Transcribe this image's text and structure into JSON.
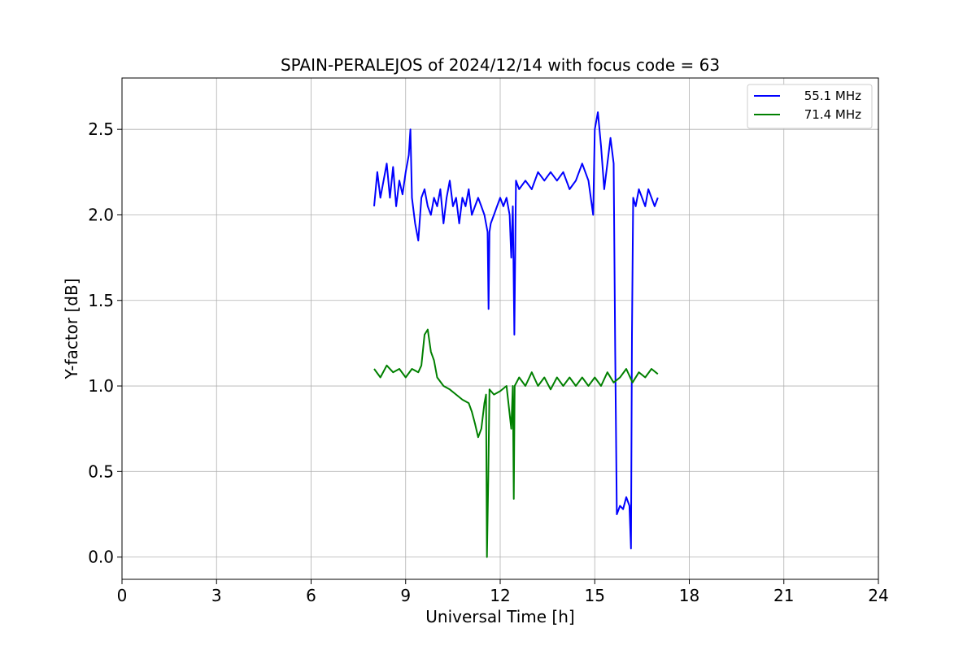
{
  "chart_data": {
    "type": "line",
    "title": "SPAIN-PERALEJOS of 2024/12/14 with focus code = 63",
    "xlabel": "Universal Time [h]",
    "ylabel": "Y-factor [dB]",
    "xlim": [
      0,
      24
    ],
    "ylim": [
      -0.13,
      2.8
    ],
    "xticks": [
      0,
      3,
      6,
      9,
      12,
      15,
      18,
      21,
      24
    ],
    "xtick_labels": [
      "0",
      "3",
      "6",
      "9",
      "12",
      "15",
      "18",
      "21",
      "24"
    ],
    "yticks": [
      0.0,
      0.5,
      1.0,
      1.5,
      2.0,
      2.5
    ],
    "ytick_labels": [
      "0.0",
      "0.5",
      "1.0",
      "1.5",
      "2.0",
      "2.5"
    ],
    "grid": true,
    "legend_position": "top-right",
    "series": [
      {
        "name": "55.1 MHz",
        "color": "#0000ff",
        "points": [
          [
            8.0,
            2.05
          ],
          [
            8.1,
            2.25
          ],
          [
            8.2,
            2.1
          ],
          [
            8.3,
            2.2
          ],
          [
            8.4,
            2.3
          ],
          [
            8.5,
            2.1
          ],
          [
            8.6,
            2.28
          ],
          [
            8.7,
            2.05
          ],
          [
            8.8,
            2.2
          ],
          [
            8.9,
            2.12
          ],
          [
            9.0,
            2.25
          ],
          [
            9.1,
            2.35
          ],
          [
            9.15,
            2.5
          ],
          [
            9.2,
            2.1
          ],
          [
            9.3,
            1.95
          ],
          [
            9.4,
            1.85
          ],
          [
            9.5,
            2.1
          ],
          [
            9.6,
            2.15
          ],
          [
            9.7,
            2.05
          ],
          [
            9.8,
            2.0
          ],
          [
            9.9,
            2.1
          ],
          [
            10.0,
            2.05
          ],
          [
            10.1,
            2.15
          ],
          [
            10.2,
            1.95
          ],
          [
            10.3,
            2.1
          ],
          [
            10.4,
            2.2
          ],
          [
            10.5,
            2.05
          ],
          [
            10.6,
            2.1
          ],
          [
            10.7,
            1.95
          ],
          [
            10.8,
            2.1
          ],
          [
            10.9,
            2.05
          ],
          [
            11.0,
            2.15
          ],
          [
            11.1,
            2.0
          ],
          [
            11.2,
            2.05
          ],
          [
            11.3,
            2.1
          ],
          [
            11.4,
            2.05
          ],
          [
            11.5,
            2.0
          ],
          [
            11.6,
            1.9
          ],
          [
            11.63,
            1.45
          ],
          [
            11.66,
            1.9
          ],
          [
            11.7,
            1.95
          ],
          [
            11.8,
            2.0
          ],
          [
            11.9,
            2.05
          ],
          [
            12.0,
            2.1
          ],
          [
            12.1,
            2.05
          ],
          [
            12.2,
            2.1
          ],
          [
            12.3,
            2.0
          ],
          [
            12.35,
            1.75
          ],
          [
            12.4,
            2.05
          ],
          [
            12.45,
            1.3
          ],
          [
            12.5,
            2.2
          ],
          [
            12.6,
            2.15
          ],
          [
            12.8,
            2.2
          ],
          [
            13.0,
            2.15
          ],
          [
            13.2,
            2.25
          ],
          [
            13.4,
            2.2
          ],
          [
            13.6,
            2.25
          ],
          [
            13.8,
            2.2
          ],
          [
            14.0,
            2.25
          ],
          [
            14.2,
            2.15
          ],
          [
            14.4,
            2.2
          ],
          [
            14.6,
            2.3
          ],
          [
            14.8,
            2.2
          ],
          [
            14.95,
            2.0
          ],
          [
            15.0,
            2.5
          ],
          [
            15.1,
            2.6
          ],
          [
            15.2,
            2.4
          ],
          [
            15.3,
            2.15
          ],
          [
            15.4,
            2.3
          ],
          [
            15.5,
            2.45
          ],
          [
            15.6,
            2.3
          ],
          [
            15.65,
            1.2
          ],
          [
            15.7,
            0.25
          ],
          [
            15.8,
            0.3
          ],
          [
            15.9,
            0.28
          ],
          [
            16.0,
            0.35
          ],
          [
            16.1,
            0.3
          ],
          [
            16.15,
            0.05
          ],
          [
            16.18,
            1.3
          ],
          [
            16.22,
            2.1
          ],
          [
            16.3,
            2.05
          ],
          [
            16.4,
            2.15
          ],
          [
            16.5,
            2.1
          ],
          [
            16.6,
            2.05
          ],
          [
            16.7,
            2.15
          ],
          [
            16.8,
            2.1
          ],
          [
            16.9,
            2.05
          ],
          [
            17.0,
            2.1
          ]
        ]
      },
      {
        "name": "71.4 MHz",
        "color": "#008000",
        "points": [
          [
            8.0,
            1.1
          ],
          [
            8.2,
            1.05
          ],
          [
            8.4,
            1.12
          ],
          [
            8.6,
            1.08
          ],
          [
            8.8,
            1.1
          ],
          [
            9.0,
            1.05
          ],
          [
            9.2,
            1.1
          ],
          [
            9.4,
            1.08
          ],
          [
            9.5,
            1.12
          ],
          [
            9.6,
            1.3
          ],
          [
            9.7,
            1.33
          ],
          [
            9.8,
            1.2
          ],
          [
            9.9,
            1.15
          ],
          [
            10.0,
            1.05
          ],
          [
            10.2,
            1.0
          ],
          [
            10.4,
            0.98
          ],
          [
            10.6,
            0.95
          ],
          [
            10.8,
            0.92
          ],
          [
            11.0,
            0.9
          ],
          [
            11.1,
            0.85
          ],
          [
            11.2,
            0.78
          ],
          [
            11.3,
            0.7
          ],
          [
            11.4,
            0.75
          ],
          [
            11.5,
            0.9
          ],
          [
            11.55,
            0.95
          ],
          [
            11.58,
            0.0
          ],
          [
            11.62,
            0.45
          ],
          [
            11.66,
            0.98
          ],
          [
            11.8,
            0.95
          ],
          [
            12.0,
            0.97
          ],
          [
            12.2,
            1.0
          ],
          [
            12.35,
            0.75
          ],
          [
            12.4,
            1.0
          ],
          [
            12.43,
            0.34
          ],
          [
            12.46,
            1.0
          ],
          [
            12.6,
            1.05
          ],
          [
            12.8,
            1.0
          ],
          [
            13.0,
            1.08
          ],
          [
            13.2,
            1.0
          ],
          [
            13.4,
            1.05
          ],
          [
            13.6,
            0.98
          ],
          [
            13.8,
            1.05
          ],
          [
            14.0,
            1.0
          ],
          [
            14.2,
            1.05
          ],
          [
            14.4,
            1.0
          ],
          [
            14.6,
            1.05
          ],
          [
            14.8,
            1.0
          ],
          [
            15.0,
            1.05
          ],
          [
            15.2,
            1.0
          ],
          [
            15.4,
            1.08
          ],
          [
            15.6,
            1.02
          ],
          [
            15.8,
            1.05
          ],
          [
            16.0,
            1.1
          ],
          [
            16.2,
            1.02
          ],
          [
            16.4,
            1.08
          ],
          [
            16.6,
            1.05
          ],
          [
            16.8,
            1.1
          ],
          [
            17.0,
            1.07
          ]
        ]
      }
    ]
  }
}
